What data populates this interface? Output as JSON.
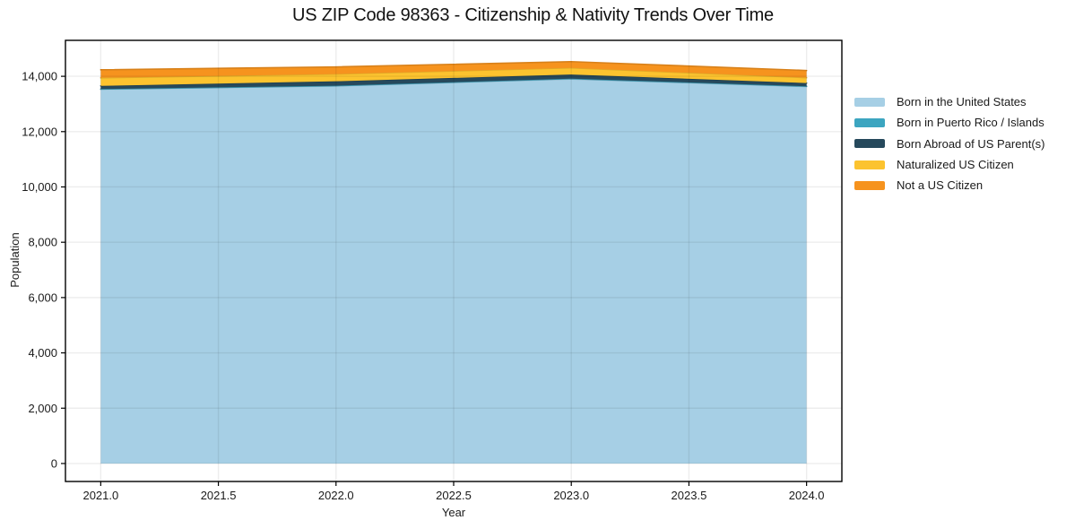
{
  "chart_data": {
    "type": "area",
    "stacked": true,
    "title": "US ZIP Code 98363 - Citizenship & Nativity Trends Over Time",
    "xlabel": "Year",
    "ylabel": "Population",
    "x": [
      2021,
      2022,
      2023,
      2024
    ],
    "series": [
      {
        "name": "Born in the United States",
        "color": "#a6cfe5",
        "values": [
          13530,
          13650,
          13900,
          13630
        ]
      },
      {
        "name": "Born in Puerto Rico / Islands",
        "color": "#3ca5c0",
        "values": [
          10,
          10,
          15,
          10
        ]
      },
      {
        "name": "Born Abroad of US Parent(s)",
        "color": "#26495c",
        "values": [
          115,
          160,
          150,
          115
        ]
      },
      {
        "name": "Naturalized US Citizen",
        "color": "#fcc32f",
        "values": [
          290,
          260,
          240,
          195
        ]
      },
      {
        "name": "Not a US Citizen",
        "color": "#f6931e",
        "values": [
          290,
          260,
          225,
          260
        ]
      }
    ],
    "xticks": {
      "values": [
        2021.0,
        2021.5,
        2022.0,
        2022.5,
        2023.0,
        2023.5,
        2024.0
      ],
      "labels": [
        "2021.0",
        "2021.5",
        "2022.0",
        "2022.5",
        "2023.0",
        "2023.5",
        "2024.0"
      ]
    },
    "yticks": {
      "values": [
        0,
        2000,
        4000,
        6000,
        8000,
        10000,
        12000,
        14000
      ],
      "labels": [
        "0",
        "2,000",
        "4,000",
        "6,000",
        "8,000",
        "10,000",
        "12,000",
        "14,000"
      ]
    },
    "xlim": [
      2020.85,
      2024.15
    ],
    "ylim": [
      -650,
      15300
    ],
    "grid": true,
    "legend_position": "right"
  },
  "colors": {
    "background": "#ffffff",
    "spine": "#000000",
    "tick_text": "#1a1a1a",
    "grid": "rgba(0,0,0,0.07)"
  }
}
